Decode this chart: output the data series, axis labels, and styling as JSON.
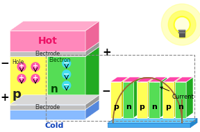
{
  "bg_color": "#ffffff",
  "hot_color": "#ff88bb",
  "hot_text": "Hot",
  "hot_text_color": "#ee1166",
  "cold_color": "#88bbff",
  "cold_text": "Cold",
  "cold_text_color": "#1144bb",
  "electrode_color": "#c0c0c0",
  "electrode_text": "Electrode",
  "p_block_color": "#ffff55",
  "n_block_color": "#55dd55",
  "p_label": "p",
  "n_label": "n",
  "hole_label": "Hole",
  "electron_label": "Electron",
  "plus_color": "#ff55aa",
  "minus_color": "#44ddee",
  "current_text": "Current",
  "bulb_glow_color": "#ffff44",
  "wire_color": "#996633",
  "fig_width": 2.88,
  "fig_height": 1.9,
  "dpi": 100
}
